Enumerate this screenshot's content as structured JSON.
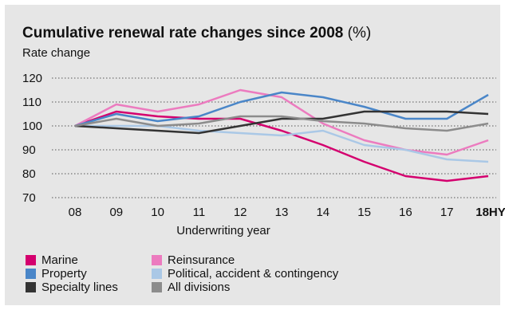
{
  "chart_data": {
    "type": "line",
    "title_bold": "Cumulative renewal rate changes since 2008",
    "title_unit": "(%)",
    "ylabel": "Rate change",
    "xlabel": "Underwriting year",
    "ylim": [
      70,
      120
    ],
    "yticks": [
      70,
      80,
      90,
      100,
      110,
      120
    ],
    "grid": "dotted horizontal",
    "legend_position": "bottom",
    "categories": [
      "08",
      "09",
      "10",
      "11",
      "12",
      "13",
      "14",
      "15",
      "16",
      "17",
      "18HY"
    ],
    "series": [
      {
        "name": "Marine",
        "color": "#d4006e",
        "values": [
          100,
          106,
          104,
          103,
          103,
          98,
          92,
          85,
          79,
          77,
          79
        ]
      },
      {
        "name": "Reinsurance",
        "color": "#ec7bbf",
        "values": [
          100,
          109,
          106,
          109,
          115,
          112,
          101,
          94,
          90,
          88,
          94
        ]
      },
      {
        "name": "Property",
        "color": "#4a86c8",
        "values": [
          100,
          105,
          102,
          104,
          110,
          114,
          112,
          108,
          103,
          103,
          113
        ]
      },
      {
        "name": "Political, accident & contingency",
        "color": "#aac8e6",
        "values": [
          100,
          100,
          100,
          98,
          97,
          96,
          98,
          92,
          90,
          86,
          85
        ]
      },
      {
        "name": "Specialty lines",
        "color": "#333333",
        "values": [
          100,
          99,
          98,
          97,
          100,
          103,
          103,
          106,
          106,
          106,
          105
        ]
      },
      {
        "name": "All divisions",
        "color": "#8c8c8c",
        "values": [
          100,
          103,
          100,
          101,
          104,
          104,
          102,
          101,
          99,
          98,
          101
        ]
      }
    ]
  }
}
